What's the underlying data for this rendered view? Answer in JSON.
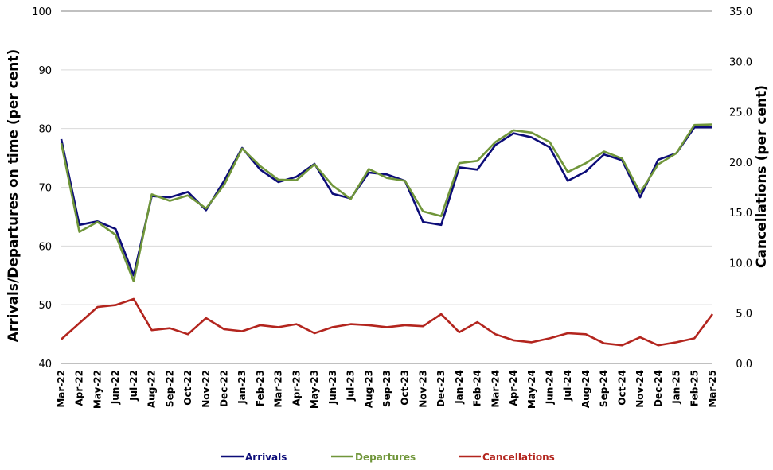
{
  "chart_data": {
    "type": "line",
    "title": "",
    "xlabel": "",
    "ylabel": "Arrivals/Departures on time (per cent)",
    "ylabel_right": "Cancellations (per cent)",
    "ylim": [
      40,
      100
    ],
    "ylim_right": [
      0,
      35
    ],
    "yticks": [
      "40",
      "50",
      "60",
      "70",
      "80",
      "90",
      "100"
    ],
    "yticks_right": [
      "0.0",
      "5.0",
      "10.0",
      "15.0",
      "20.0",
      "25.0",
      "30.0",
      "35.0"
    ],
    "grid": "horizontal",
    "legend_position": "bottom",
    "x": [
      "Mar-22",
      "Apr-22",
      "May-22",
      "Jun-22",
      "Jul-22",
      "Aug-22",
      "Sep-22",
      "Oct-22",
      "Nov-22",
      "Dec-22",
      "Jan-23",
      "Feb-23",
      "Mar-23",
      "Apr-23",
      "May-23",
      "Jun-23",
      "Jul-23",
      "Aug-23",
      "Sep-23",
      "Oct-23",
      "Nov-23",
      "Dec-23",
      "Jan-24",
      "Feb-24",
      "Mar-24",
      "Apr-24",
      "May-24",
      "Jun-24",
      "Jul-24",
      "Aug-24",
      "Sep-24",
      "Oct-24",
      "Nov-24",
      "Dec-24",
      "Jan-25",
      "Feb-25",
      "Mar-25"
    ],
    "series": [
      {
        "name": "Arrivals",
        "axis": "left",
        "color": "#0c0c78",
        "values": [
          78.2,
          63.6,
          64.2,
          62.9,
          55.0,
          68.5,
          68.3,
          69.2,
          66.1,
          71.1,
          76.7,
          73.0,
          70.9,
          71.8,
          74.0,
          68.9,
          68.1,
          72.5,
          72.2,
          71.1,
          64.1,
          63.6,
          73.4,
          73.0,
          77.2,
          79.2,
          78.5,
          76.8,
          71.1,
          72.7,
          75.6,
          74.6,
          68.3,
          74.7,
          75.8,
          80.2,
          80.2
        ]
      },
      {
        "name": "Departures",
        "axis": "left",
        "color": "#70963a",
        "values": [
          77.5,
          62.4,
          64.1,
          61.9,
          54.0,
          68.8,
          67.7,
          68.6,
          66.4,
          70.4,
          76.6,
          73.6,
          71.3,
          71.2,
          73.9,
          70.3,
          68.0,
          73.1,
          71.6,
          71.1,
          65.9,
          65.1,
          74.1,
          74.5,
          77.7,
          79.7,
          79.3,
          77.7,
          72.6,
          74.1,
          76.1,
          74.9,
          69.1,
          73.9,
          75.8,
          80.6,
          80.7
        ]
      },
      {
        "name": "Cancellations",
        "axis": "right",
        "color": "#b3251e",
        "values": [
          2.4,
          4.0,
          5.6,
          5.8,
          6.4,
          3.3,
          3.5,
          2.9,
          4.5,
          3.4,
          3.2,
          3.8,
          3.6,
          3.9,
          3.0,
          3.6,
          3.9,
          3.8,
          3.6,
          3.8,
          3.7,
          4.9,
          3.1,
          4.1,
          2.9,
          2.3,
          2.1,
          2.5,
          3.0,
          2.9,
          2.0,
          1.8,
          2.6,
          1.8,
          2.1,
          2.5,
          4.9
        ]
      }
    ]
  }
}
